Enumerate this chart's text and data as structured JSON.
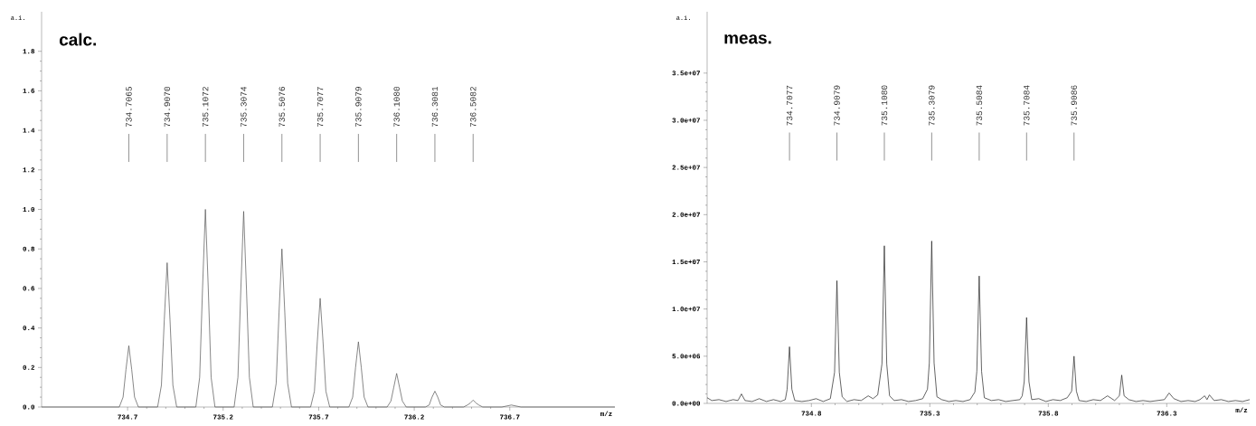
{
  "chart_data": [
    {
      "type": "line",
      "title": "calc.",
      "xlabel": "m/z",
      "ylabel": "a.i.",
      "marker": "none",
      "line_style": "solid",
      "xlim": [
        734.25,
        737.25
      ],
      "xticks": [
        734.7,
        735.2,
        735.7,
        736.2,
        736.7
      ],
      "ylim": [
        0,
        2.0
      ],
      "yticks": [
        {
          "value": 0,
          "label": "0.0"
        },
        {
          "value": 0.2,
          "label": "0.2"
        },
        {
          "value": 0.4,
          "label": "0.4"
        },
        {
          "value": 0.6,
          "label": "0.6"
        },
        {
          "value": 0.8,
          "label": "0.8"
        },
        {
          "value": 1.0,
          "label": "1.0"
        },
        {
          "value": 1.2,
          "label": "1.2"
        },
        {
          "value": 1.4,
          "label": "1.4"
        },
        {
          "value": 1.6,
          "label": "1.6"
        },
        {
          "value": 1.8,
          "label": "1.8"
        }
      ],
      "annotations": [
        {
          "text": "734.7065",
          "x": 734.7065
        },
        {
          "text": "734.9070",
          "x": 734.907
        },
        {
          "text": "735.1072",
          "x": 735.1072
        },
        {
          "text": "735.3074",
          "x": 735.3074
        },
        {
          "text": "735.5076",
          "x": 735.5076
        },
        {
          "text": "735.7077",
          "x": 735.7077
        },
        {
          "text": "735.9079",
          "x": 735.9079
        },
        {
          "text": "736.1080",
          "x": 736.108
        },
        {
          "text": "736.3081",
          "x": 736.3081
        },
        {
          "text": "736.5082",
          "x": 736.5082
        }
      ],
      "series": [
        {
          "color": "#555555",
          "x": [
            734.25,
            734.6565,
            734.6765,
            734.6915,
            734.7065,
            734.7215,
            734.7365,
            734.7565,
            734.857,
            734.877,
            734.892,
            734.907,
            734.922,
            734.937,
            734.957,
            735.0572,
            735.0772,
            735.0922,
            735.1072,
            735.1222,
            735.1372,
            735.1572,
            735.2574,
            735.2774,
            735.2924,
            735.3074,
            735.3224,
            735.3374,
            735.3574,
            735.4576,
            735.4776,
            735.4926,
            735.5076,
            735.5226,
            735.5376,
            735.5576,
            735.6577,
            735.6777,
            735.6927,
            735.7077,
            735.7227,
            735.7377,
            735.7577,
            735.8579,
            735.8779,
            735.8929,
            735.9079,
            735.9229,
            735.9379,
            735.9579,
            736.058,
            736.078,
            736.093,
            736.108,
            736.123,
            736.138,
            736.158,
            736.2581,
            736.2781,
            736.2931,
            736.3081,
            736.3231,
            736.3381,
            736.3581,
            736.4582,
            736.4782,
            736.4932,
            736.5082,
            736.5232,
            736.5382,
            736.5582,
            736.6583,
            736.7083,
            736.7583,
            737.25
          ],
          "values": [
            0,
            0,
            0.05,
            0.19,
            0.31,
            0.19,
            0.05,
            0,
            0,
            0.11,
            0.44,
            0.73,
            0.44,
            0.11,
            0,
            0,
            0.15,
            0.6,
            1.0,
            0.6,
            0.15,
            0,
            0,
            0.15,
            0.59,
            0.99,
            0.59,
            0.15,
            0,
            0,
            0.12,
            0.48,
            0.8,
            0.48,
            0.12,
            0,
            0,
            0.08,
            0.33,
            0.55,
            0.33,
            0.08,
            0,
            0,
            0.05,
            0.2,
            0.33,
            0.2,
            0.05,
            0,
            0,
            0.03,
            0.1,
            0.17,
            0.1,
            0.03,
            0,
            0,
            0.01,
            0.05,
            0.08,
            0.05,
            0.01,
            0,
            0,
            0.01,
            0.02,
            0.035,
            0.02,
            0.01,
            0,
            0,
            0.01,
            0,
            0
          ]
        }
      ]
    },
    {
      "type": "line",
      "title": "meas.",
      "xlabel": "m/z",
      "ylabel": "a.i.",
      "marker": "none",
      "line_style": "solid",
      "xlim": [
        734.36,
        736.65
      ],
      "xticks": [
        734.8,
        735.3,
        735.8,
        736.3
      ],
      "ylim": [
        0,
        41500000
      ],
      "yticks": [
        {
          "value": 0,
          "label": "0.0e+00"
        },
        {
          "value": 5000000,
          "label": "5.0e+06"
        },
        {
          "value": 10000000,
          "label": "1.0e+07"
        },
        {
          "value": 15000000,
          "label": "1.5e+07"
        },
        {
          "value": 20000000,
          "label": "2.0e+07"
        },
        {
          "value": 25000000,
          "label": "2.5e+07"
        },
        {
          "value": 30000000,
          "label": "3.0e+07"
        },
        {
          "value": 35000000,
          "label": "3.5e+07"
        }
      ],
      "annotations": [
        {
          "text": "734.7077",
          "x": 734.7077
        },
        {
          "text": "734.9079",
          "x": 734.9079
        },
        {
          "text": "735.1080",
          "x": 735.108
        },
        {
          "text": "735.3079",
          "x": 735.3079
        },
        {
          "text": "735.5084",
          "x": 735.5084
        },
        {
          "text": "735.7084",
          "x": 735.7084
        },
        {
          "text": "735.9086",
          "x": 735.9086
        }
      ],
      "series": [
        {
          "color": "#222222",
          "x": [
            734.36,
            734.38,
            734.41,
            734.44,
            734.47,
            734.49,
            734.505,
            734.52,
            734.55,
            734.58,
            734.61,
            734.64,
            734.67,
            734.69,
            734.6977,
            734.7077,
            734.7177,
            734.73,
            734.76,
            734.79,
            734.82,
            734.85,
            734.88,
            734.8979,
            734.9079,
            734.9179,
            734.93,
            734.95,
            734.98,
            735.01,
            735.04,
            735.06,
            735.08,
            735.098,
            735.108,
            735.118,
            735.13,
            735.15,
            735.18,
            735.21,
            735.24,
            735.27,
            735.29,
            735.2979,
            735.3079,
            735.3179,
            735.33,
            735.35,
            735.38,
            735.41,
            735.44,
            735.47,
            735.49,
            735.4984,
            735.5084,
            735.5184,
            735.53,
            735.56,
            735.59,
            735.62,
            735.65,
            735.68,
            735.69,
            735.6984,
            735.7084,
            735.7184,
            735.73,
            735.76,
            735.79,
            735.82,
            735.85,
            735.88,
            735.8986,
            735.9086,
            735.9186,
            735.93,
            735.96,
            735.99,
            736.02,
            736.05,
            736.08,
            736.1,
            736.11,
            736.12,
            736.14,
            736.17,
            736.2,
            736.23,
            736.26,
            736.29,
            736.31,
            736.33,
            736.36,
            736.39,
            736.42,
            736.44,
            736.46,
            736.47,
            736.48,
            736.5,
            736.53,
            736.56,
            736.59,
            736.62,
            736.65
          ],
          "values": [
            600000,
            300000,
            400000,
            200000,
            400000,
            300000,
            1000000,
            300000,
            200000,
            500000,
            200000,
            400000,
            200000,
            400000,
            1500000,
            6000000,
            1500000,
            300000,
            200000,
            300000,
            500000,
            200000,
            500000,
            3300000,
            13000000,
            3300000,
            700000,
            200000,
            400000,
            300000,
            800000,
            500000,
            900000,
            4200000,
            16700000,
            4200000,
            800000,
            300000,
            400000,
            200000,
            300000,
            500000,
            1500000,
            4300000,
            17200000,
            4300000,
            700000,
            400000,
            200000,
            300000,
            200000,
            400000,
            1200000,
            3400000,
            13500000,
            3400000,
            600000,
            300000,
            400000,
            200000,
            300000,
            400000,
            800000,
            2300000,
            9100000,
            2300000,
            400000,
            500000,
            200000,
            400000,
            300000,
            600000,
            1300000,
            5000000,
            1300000,
            300000,
            200000,
            400000,
            300000,
            800000,
            300000,
            800000,
            3000000,
            800000,
            400000,
            200000,
            300000,
            200000,
            300000,
            400000,
            1100000,
            500000,
            200000,
            300000,
            200000,
            400000,
            800000,
            400000,
            900000,
            300000,
            400000,
            200000,
            300000,
            200000,
            400000
          ]
        }
      ]
    }
  ]
}
